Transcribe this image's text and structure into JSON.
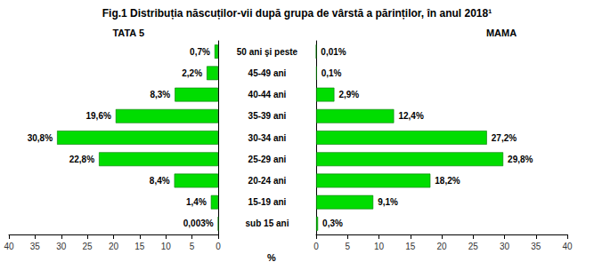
{
  "chart_data": {
    "type": "bar",
    "orientation": "horizontal",
    "title": "Fig.1 Distribuția născuților-vii după grupa de vârstă a părinților, în anul 2018¹",
    "xlabel": "%",
    "categories": [
      "50 ani şi peste",
      "45-49 ani",
      "40-44 ani",
      "35-39 ani",
      "30-34 ani",
      "25-29 ani",
      "20-24 ani",
      "15-19 ani",
      "sub 15 ani"
    ],
    "series": [
      {
        "name": "TATA 5",
        "color": "#00dd00",
        "values": [
          0.7,
          2.2,
          8.3,
          19.6,
          30.8,
          22.8,
          8.4,
          1.4,
          0.003
        ],
        "value_labels": [
          "0,7%",
          "2,2%",
          "8,3%",
          "19,6%",
          "30,8%",
          "22,8%",
          "8,4%",
          "1,4%",
          "0,003%"
        ]
      },
      {
        "name": "MAMA",
        "color": "#00dd00",
        "values": [
          0.01,
          0.1,
          2.9,
          12.4,
          27.2,
          29.8,
          18.2,
          9.1,
          0.3
        ],
        "value_labels": [
          "0,01%",
          "0,1%",
          "2,9%",
          "12,4%",
          "27,2%",
          "29,8%",
          "18,2%",
          "9,1%",
          "0,3%"
        ]
      }
    ],
    "xlim": [
      0,
      40
    ],
    "xticks": [
      0,
      5,
      10,
      15,
      20,
      25,
      30,
      35,
      40
    ],
    "data_labels": true,
    "grid": false
  }
}
